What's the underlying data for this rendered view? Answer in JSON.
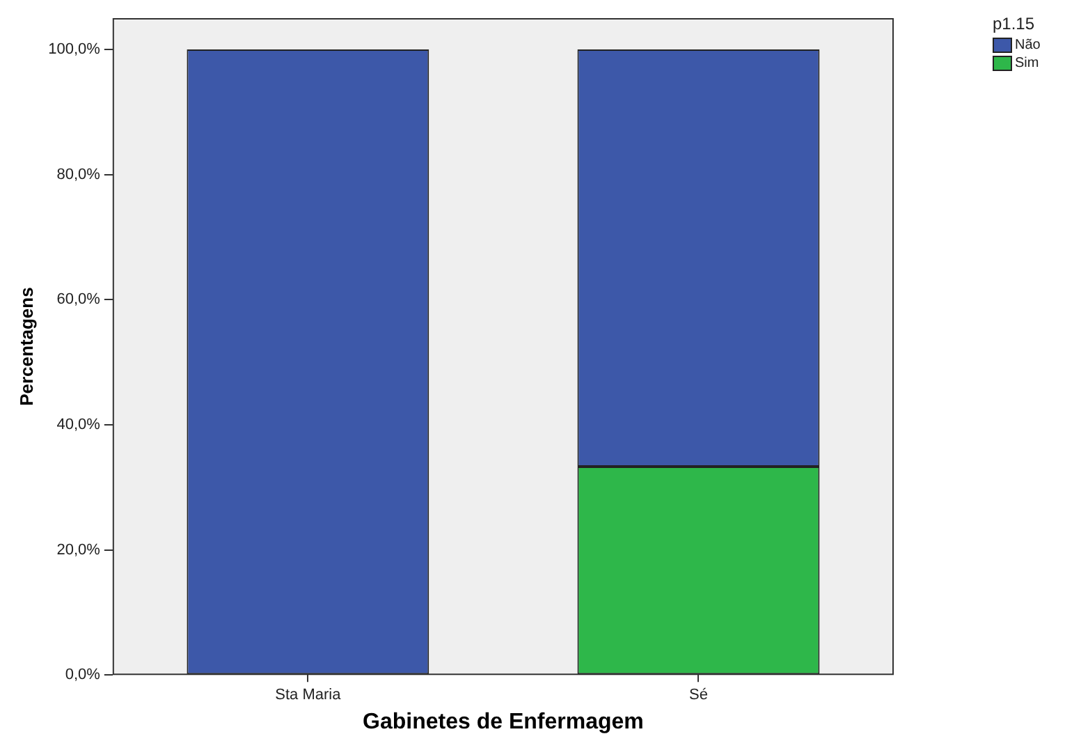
{
  "chart_data": {
    "type": "bar",
    "stacked": true,
    "xlabel": "Gabinetes de Enfermagem",
    "ylabel": "Percentagens",
    "legend_title": "p1.15",
    "legend": "top right",
    "grid": false,
    "categories": [
      "Sta Maria",
      "Sé"
    ],
    "series": [
      {
        "name": "Sim",
        "color": "#2eb74a",
        "values": [
          0,
          33.3
        ]
      },
      {
        "name": "Não",
        "color": "#3d58a9",
        "values": [
          100,
          66.7
        ]
      }
    ],
    "ylim": [
      0,
      105
    ],
    "yticks": [
      {
        "value": 0,
        "label": "0,0%"
      },
      {
        "value": 20,
        "label": "20,0%"
      },
      {
        "value": 40,
        "label": "40,0%"
      },
      {
        "value": 60,
        "label": "60,0%"
      },
      {
        "value": 80,
        "label": "80,0%"
      },
      {
        "value": 100,
        "label": "100,0%"
      }
    ]
  }
}
